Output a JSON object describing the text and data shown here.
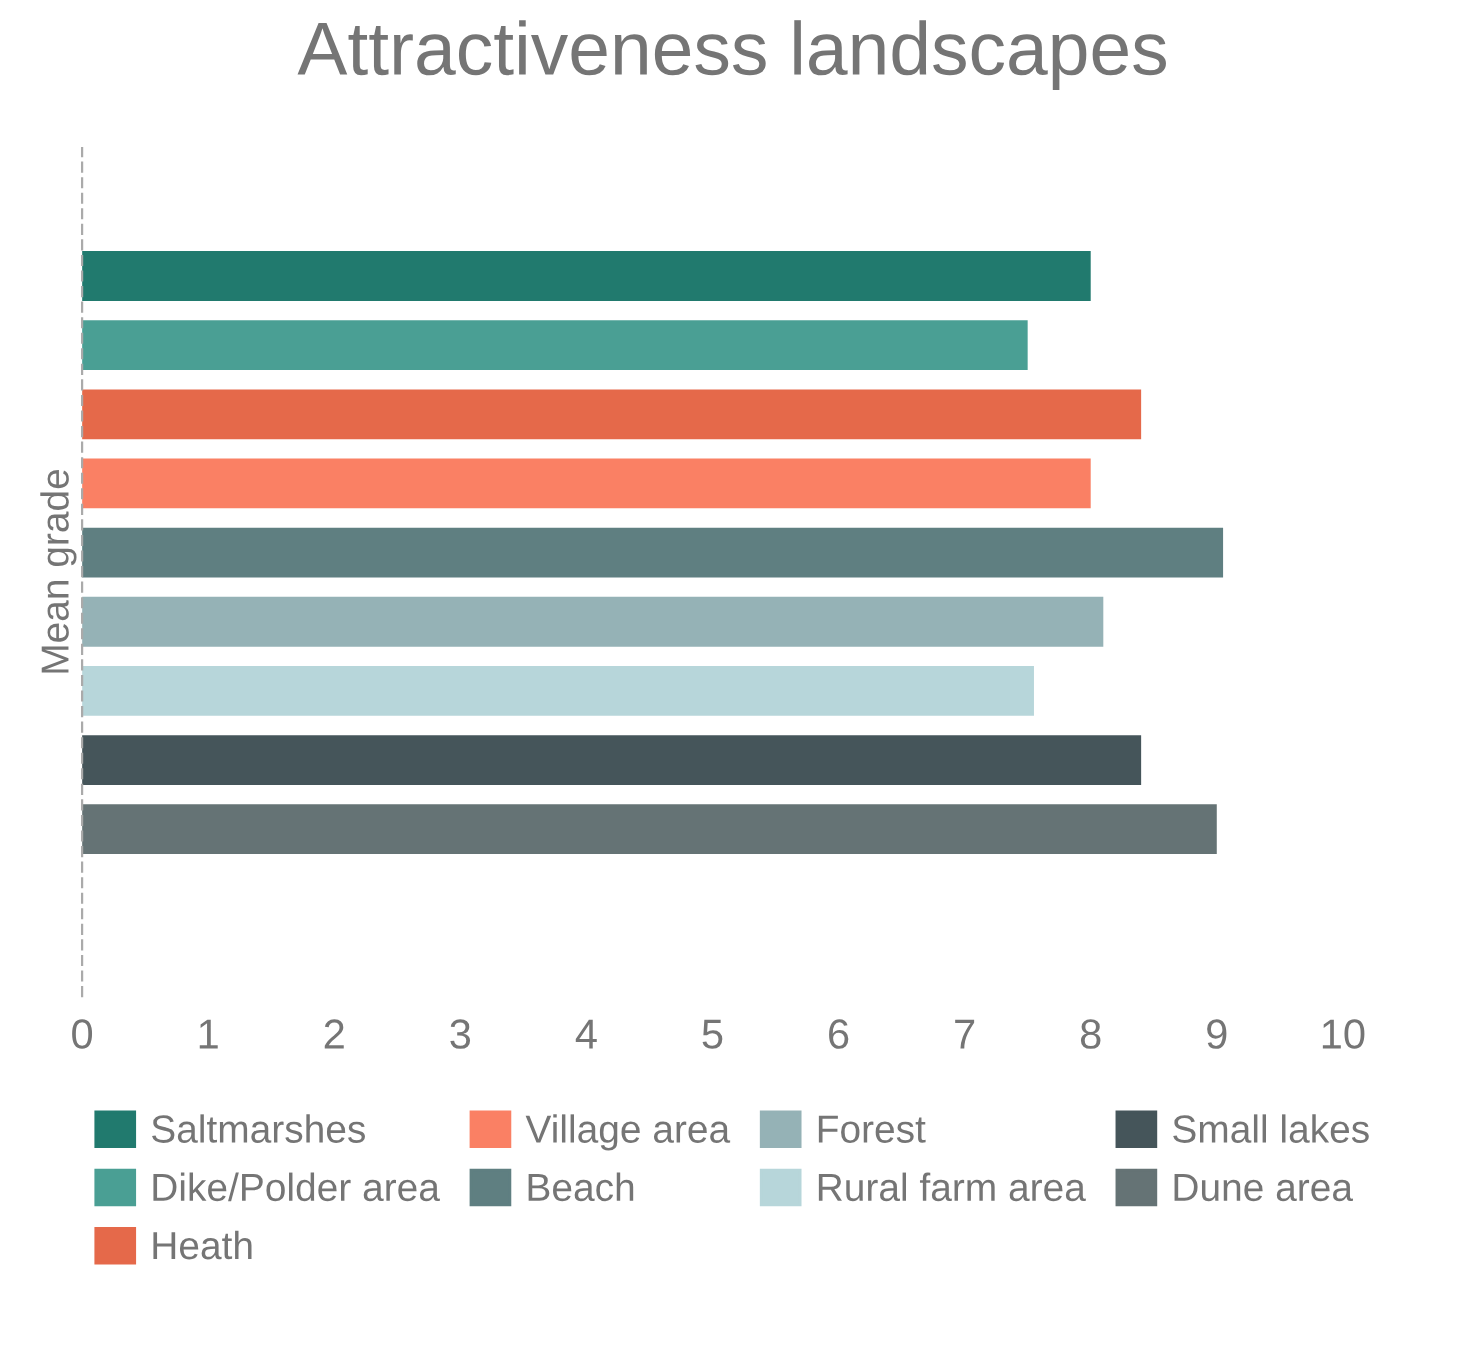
{
  "chart_data": {
    "type": "bar",
    "orientation": "horizontal",
    "title": "Attractiveness landscapes",
    "ylabel": "Mean grade",
    "categories": [
      null
    ],
    "series": [
      {
        "name": "Saltmarshes",
        "color": "#217a6e",
        "values": [
          8.0
        ]
      },
      {
        "name": "Dike/Polder area",
        "color": "#4a9f94",
        "values": [
          7.5
        ]
      },
      {
        "name": "Heath",
        "color": "#e5694a",
        "values": [
          8.4
        ]
      },
      {
        "name": "Village area",
        "color": "#fa8064",
        "values": [
          8.0
        ]
      },
      {
        "name": "Beach",
        "color": "#5f7f81",
        "values": [
          9.05
        ]
      },
      {
        "name": "Forest",
        "color": "#95b2b6",
        "values": [
          8.1
        ]
      },
      {
        "name": "Rural farm area",
        "color": "#b7d6da",
        "values": [
          7.55
        ]
      },
      {
        "name": "Small lakes",
        "color": "#45555a",
        "values": [
          8.4
        ]
      },
      {
        "name": "Dune area",
        "color": "#657375",
        "values": [
          9.0
        ]
      }
    ],
    "xlim": [
      0,
      10
    ],
    "xticks": [
      0,
      1,
      2,
      3,
      4,
      5,
      6,
      7,
      8,
      9,
      10
    ],
    "grid": false,
    "legend": "bottom",
    "tick_labels": "x"
  }
}
